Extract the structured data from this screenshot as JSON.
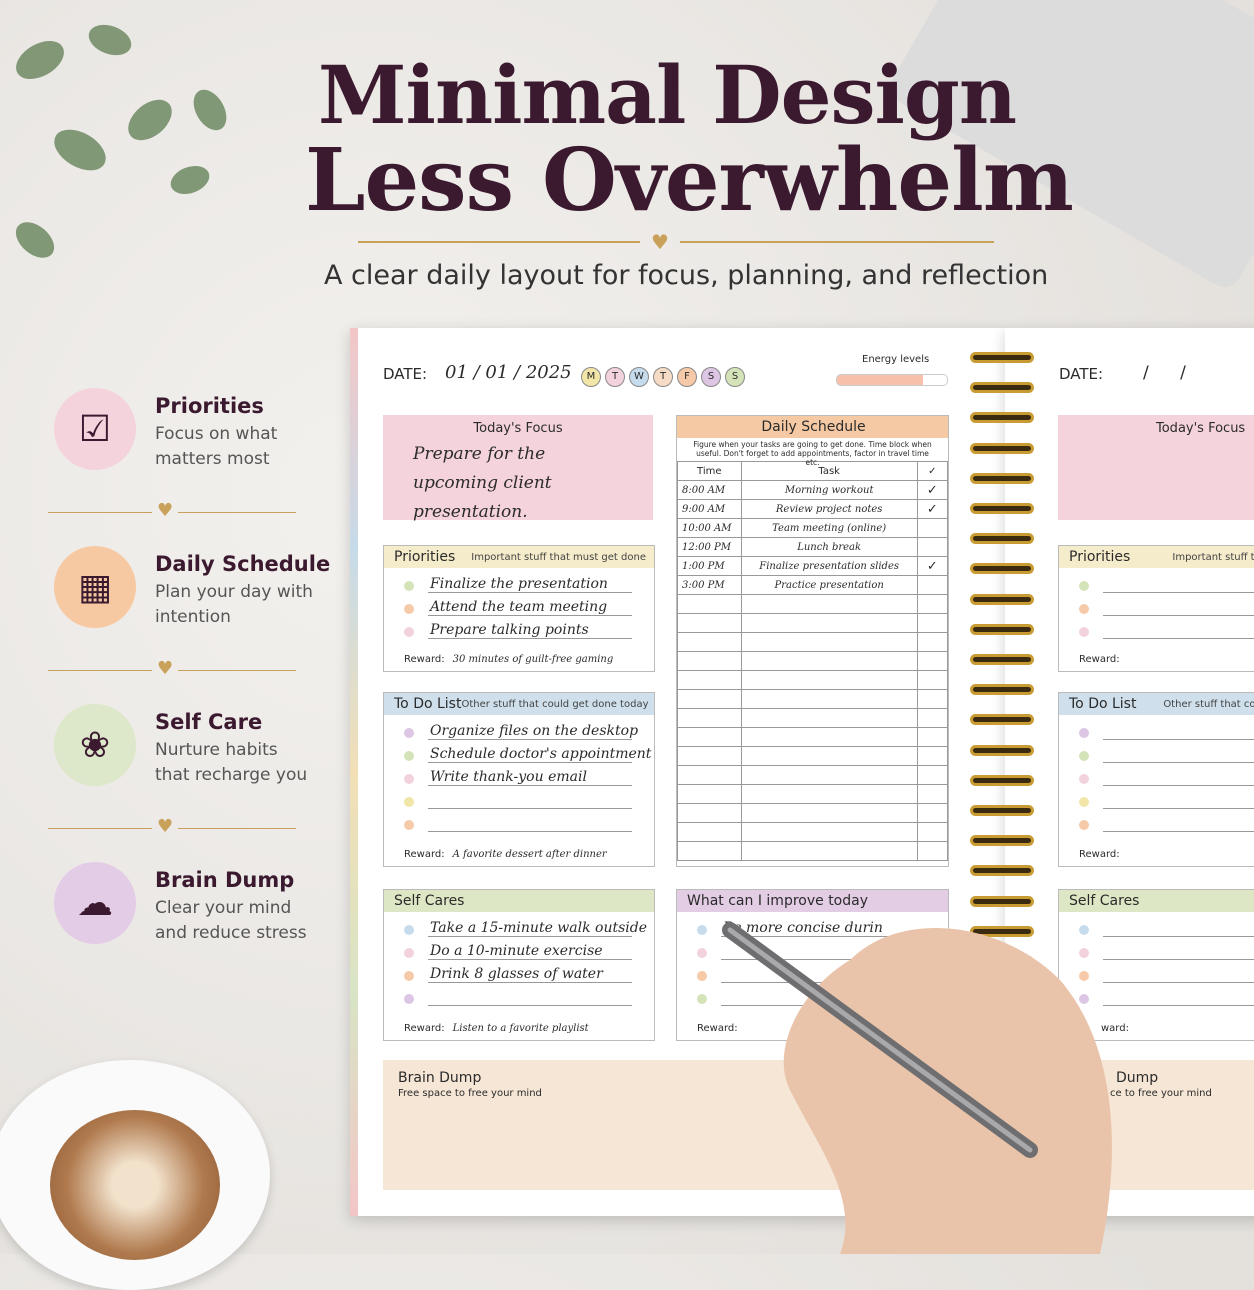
{
  "header": {
    "title_line1": "Minimal Design",
    "title_line2": "Less Overwhelm",
    "subtitle": "A clear daily layout for focus, planning, and reflection"
  },
  "features": [
    {
      "title": "Priorities",
      "description": "Focus on what matters most"
    },
    {
      "title": "Daily Schedule",
      "description": "Plan your day with intention"
    },
    {
      "title": "Self Care",
      "description": "Nurture habits that recharge you"
    },
    {
      "title": "Brain Dump",
      "description": "Clear your mind and reduce stress"
    }
  ],
  "left_page": {
    "date_label": "DATE:",
    "date": "01 / 01 / 2025",
    "weekdays": [
      "M",
      "T",
      "W",
      "T",
      "F",
      "S",
      "S"
    ],
    "energy_label": "Energy levels",
    "focus": {
      "title": "Today's Focus",
      "text": "Prepare for the upcoming client presentation."
    },
    "priorities": {
      "title": "Priorities",
      "note": "Important stuff that must get done",
      "items": [
        "Finalize the presentation",
        "Attend the team meeting",
        "Prepare talking points"
      ],
      "reward_label": "Reward:",
      "reward": "30 minutes of guilt-free gaming"
    },
    "todo": {
      "title": "To Do List",
      "note": "Other stuff that could get done today",
      "items": [
        "Organize files on the desktop",
        "Schedule doctor's appointment",
        "Write thank-you email"
      ],
      "reward_label": "Reward:",
      "reward": "A favorite dessert after dinner"
    },
    "schedule": {
      "title": "Daily Schedule",
      "note": "Figure when your tasks are going to get done. Time block when useful. Don't forget to add appointments, factor in travel time etc.",
      "headers": [
        "Time",
        "Task",
        "✓"
      ],
      "rows": [
        {
          "time": "8:00 AM",
          "task": "Morning workout",
          "check": "✓"
        },
        {
          "time": "9:00 AM",
          "task": "Review project notes",
          "check": "✓"
        },
        {
          "time": "10:00 AM",
          "task": "Team meeting (online)"
        },
        {
          "time": "12:00 PM",
          "task": "Lunch break"
        },
        {
          "time": "1:00 PM",
          "task": "Finalize presentation slides",
          "check": "✓"
        },
        {
          "time": "3:00 PM",
          "task": "Practice presentation"
        }
      ]
    },
    "self_cares": {
      "title": "Self Cares",
      "items": [
        "Take a 15-minute walk outside",
        "Do a 10-minute exercise",
        "Drink 8 glasses of water"
      ],
      "reward_label": "Reward:",
      "reward": "Listen to a favorite playlist"
    },
    "improve": {
      "title": "What can I improve today",
      "items": [
        "Be more concise durin"
      ],
      "reward_label": "Reward:"
    },
    "brain_dump": {
      "title": "Brain Dump",
      "note": "Free space to free your mind"
    }
  },
  "right_page": {
    "date_label": "DATE:",
    "date": "/ /",
    "focus_title": "Today's Focus",
    "priorities_title": "Priorities",
    "priorities_note": "Important stuff that",
    "priorities_reward": "Reward:",
    "todo_title": "To Do List",
    "todo_note": "Other stuff that could",
    "todo_reward": "Reward:",
    "self_cares_title": "Self Cares",
    "self_cares_reward": "ward:",
    "brain_dump_title": "Dump",
    "brain_dump_note": "ce to free your mind"
  }
}
